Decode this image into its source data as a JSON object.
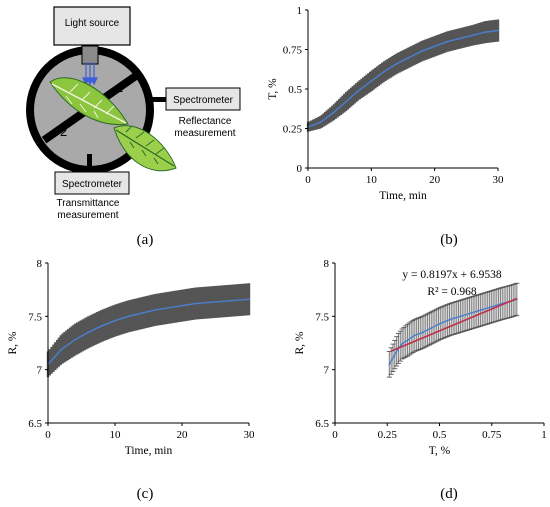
{
  "panels": {
    "a": "(a)",
    "b": "(b)",
    "c": "(c)",
    "d": "(d)"
  },
  "diagram": {
    "light_source": "Light source",
    "spectrometer_right": "Spectrometer",
    "reflectance_line1": "Reflectance",
    "reflectance_line2": "measurement",
    "spectrometer_bottom": "Spectrometer",
    "transmittance_line1": "Transmittance",
    "transmittance_line2": "measurement",
    "port_1": "1",
    "port_2": "2"
  },
  "colors": {
    "mean_line": "#4a7fd0",
    "error_band": "#555555",
    "fit_line": "#c0304a",
    "leaf_green": "#8cc63f",
    "leaf_dark": "#2f6b2a"
  },
  "chart_data": [
    {
      "id": "b",
      "type": "line",
      "xlabel": "Time, min",
      "ylabel": "T, %",
      "xlim": [
        0,
        30
      ],
      "ylim": [
        0,
        1
      ],
      "xticks": [
        "0",
        "10",
        "20",
        "30"
      ],
      "yticks": [
        "0",
        "0.25",
        "0.5",
        "0.75",
        "1"
      ],
      "error_bars": true,
      "x": [
        0,
        2,
        4,
        6,
        8,
        10,
        12,
        14,
        16,
        18,
        20,
        22,
        24,
        26,
        28,
        30
      ],
      "y": [
        0.26,
        0.29,
        0.35,
        0.42,
        0.49,
        0.55,
        0.61,
        0.66,
        0.7,
        0.74,
        0.77,
        0.8,
        0.82,
        0.84,
        0.86,
        0.87
      ],
      "err": [
        0.03,
        0.04,
        0.05,
        0.06,
        0.06,
        0.065,
        0.065,
        0.065,
        0.065,
        0.065,
        0.065,
        0.065,
        0.065,
        0.065,
        0.07,
        0.07
      ]
    },
    {
      "id": "c",
      "type": "line",
      "xlabel": "Time, min",
      "ylabel": "R, %",
      "xlim": [
        0,
        30
      ],
      "ylim": [
        6.5,
        8
      ],
      "xticks": [
        "0",
        "10",
        "20",
        "30"
      ],
      "yticks": [
        "6.5",
        "7",
        "7.5",
        "8"
      ],
      "error_bars": true,
      "x": [
        0,
        1,
        2,
        4,
        6,
        8,
        10,
        12,
        14,
        16,
        18,
        20,
        22,
        24,
        26,
        28,
        30
      ],
      "y": [
        7.05,
        7.12,
        7.19,
        7.28,
        7.35,
        7.41,
        7.46,
        7.5,
        7.53,
        7.56,
        7.58,
        7.6,
        7.62,
        7.63,
        7.64,
        7.65,
        7.66
      ],
      "err": [
        0.12,
        0.13,
        0.14,
        0.15,
        0.15,
        0.15,
        0.15,
        0.15,
        0.15,
        0.15,
        0.15,
        0.15,
        0.15,
        0.15,
        0.15,
        0.15,
        0.15
      ]
    },
    {
      "id": "d",
      "type": "scatter",
      "xlabel": "T, %",
      "ylabel": "R, %",
      "xlim": [
        0,
        1
      ],
      "ylim": [
        6.5,
        8
      ],
      "xticks": [
        "0",
        "0.25",
        "0.5",
        "0.75",
        "1"
      ],
      "yticks": [
        "6.5",
        "7",
        "7.5",
        "8"
      ],
      "error_bars": true,
      "trendline": {
        "slope": 0.8197,
        "intercept": 6.9538,
        "x_range": [
          0.27,
          0.87
        ]
      },
      "equation": "y = 0.8197x + 6.9538",
      "r_squared": "R² = 0.968",
      "x": [
        0.26,
        0.28,
        0.3,
        0.32,
        0.35,
        0.38,
        0.42,
        0.46,
        0.5,
        0.55,
        0.6,
        0.65,
        0.7,
        0.75,
        0.8,
        0.84,
        0.87
      ],
      "y": [
        7.05,
        7.12,
        7.19,
        7.24,
        7.28,
        7.32,
        7.35,
        7.39,
        7.43,
        7.47,
        7.5,
        7.53,
        7.56,
        7.59,
        7.62,
        7.64,
        7.66
      ],
      "err": [
        0.12,
        0.13,
        0.14,
        0.14,
        0.15,
        0.15,
        0.15,
        0.15,
        0.15,
        0.15,
        0.15,
        0.15,
        0.15,
        0.15,
        0.15,
        0.15,
        0.15
      ]
    }
  ]
}
